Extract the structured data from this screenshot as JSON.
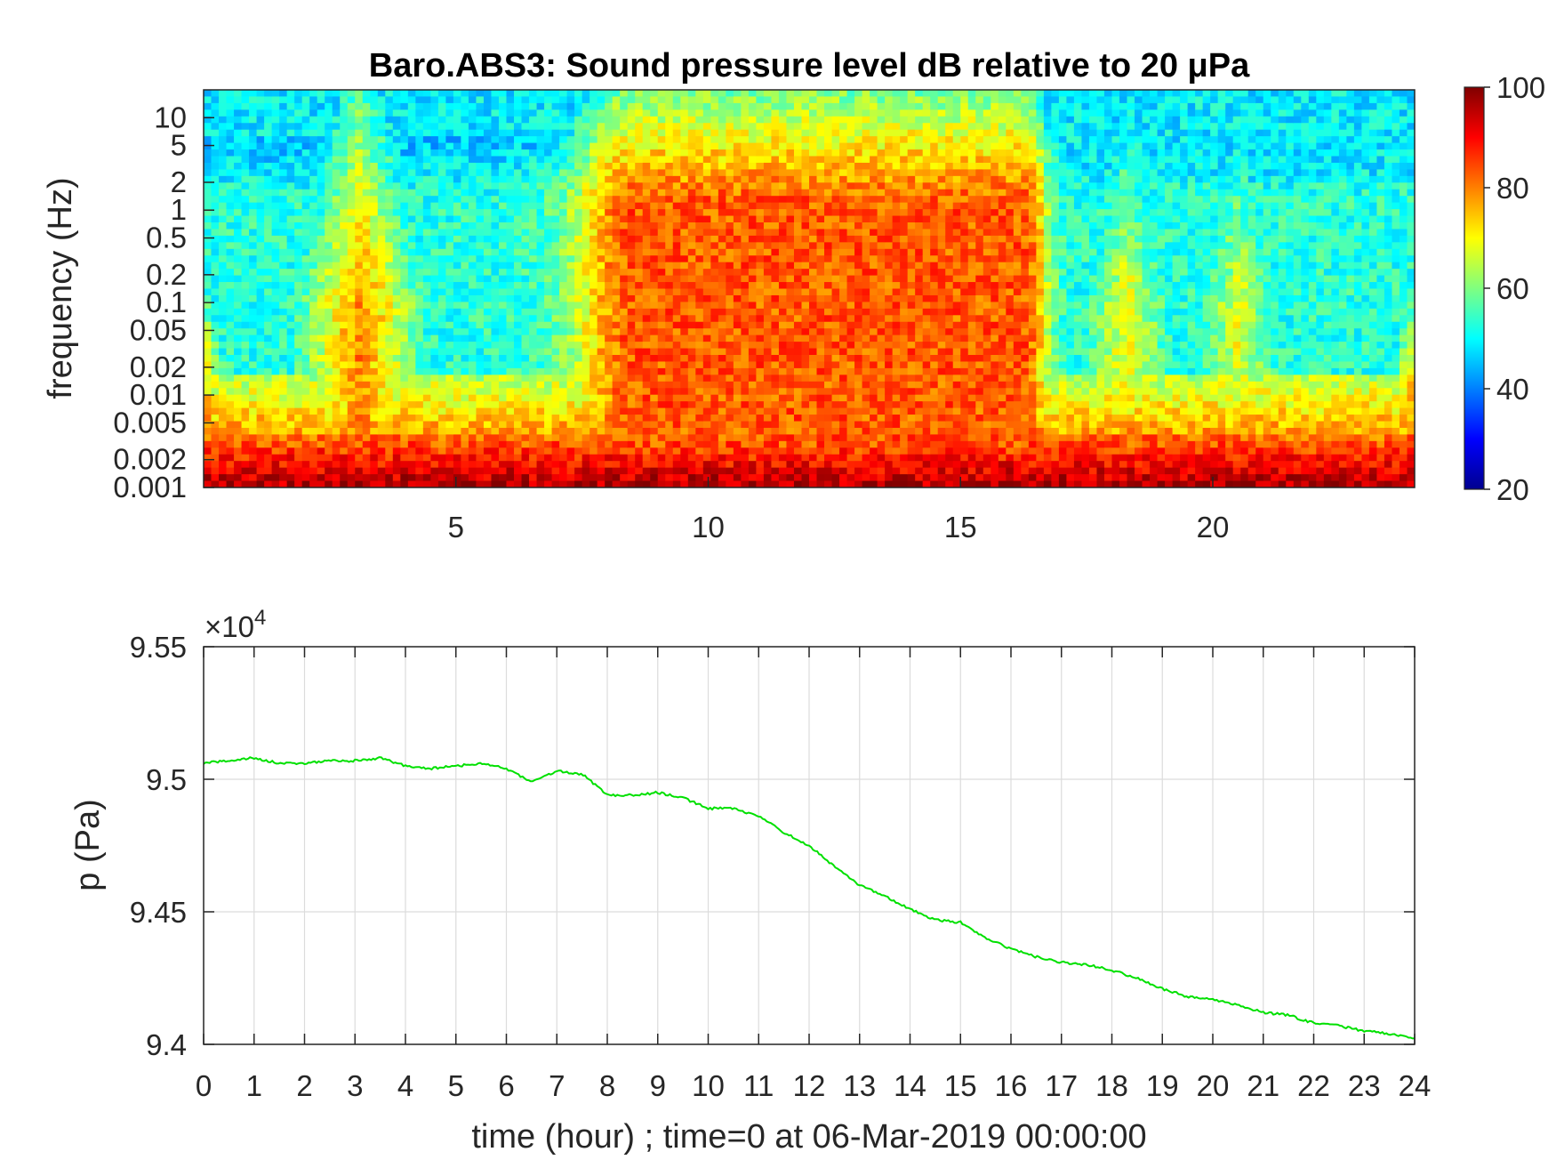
{
  "chart_data": [
    {
      "type": "heatmap",
      "title": "Baro.ABS3: Sound pressure level dB relative to 20 μPa",
      "xlabel": "",
      "ylabel": "frequency (Hz)",
      "xlim": [
        0,
        24
      ],
      "x_ticks": [
        "5",
        "10",
        "15",
        "20"
      ],
      "y_scale": "log",
      "ylim": [
        0.001,
        20
      ],
      "y_ticks": [
        "0.001",
        "0.002",
        "0.005",
        "0.01",
        "0.02",
        "0.05",
        "0.1",
        "0.2",
        "0.5",
        "1",
        "2",
        "5",
        "10"
      ],
      "colorbar": {
        "min": 20,
        "max": 100,
        "ticks": [
          "20",
          "40",
          "60",
          "80",
          "100"
        ],
        "colormap": "jet"
      },
      "events": [
        {
          "name": "broadband high-level period",
          "x_start": 8.5,
          "x_end": 16.3,
          "level_db": 85
        },
        {
          "name": "burst",
          "x": 18.3,
          "level_db": 70
        },
        {
          "name": "burst",
          "x": 20.5,
          "level_db": 68
        },
        {
          "name": "burst",
          "x": 3.1,
          "level_db": 80
        }
      ]
    },
    {
      "type": "line",
      "title": "",
      "xlabel": "time (hour) ; time=0 at 06-Mar-2019 00:00:00",
      "ylabel": "p (Pa)",
      "multiplier": "×10",
      "multiplier_exp": "4",
      "xlim": [
        0,
        24
      ],
      "ylim": [
        9.4,
        9.55
      ],
      "x_ticks": [
        "0",
        "1",
        "2",
        "3",
        "4",
        "5",
        "6",
        "7",
        "8",
        "9",
        "10",
        "11",
        "12",
        "13",
        "14",
        "15",
        "16",
        "17",
        "18",
        "19",
        "20",
        "21",
        "22",
        "23",
        "24"
      ],
      "y_ticks": [
        "9.4",
        "9.45",
        "9.5",
        "9.55"
      ],
      "grid": true,
      "line_color": "#00e000",
      "series": [
        {
          "x": [
            0,
            0.5,
            1,
            1.5,
            2,
            2.5,
            3,
            3.5,
            4,
            4.5,
            5,
            5.5,
            6,
            6.5,
            7,
            7.5,
            8,
            8.5,
            9,
            9.5,
            10,
            10.5,
            11,
            11.5,
            12,
            12.5,
            13,
            13.5,
            14,
            14.5,
            15,
            15.5,
            16,
            16.5,
            17,
            17.5,
            18,
            18.5,
            19,
            19.5,
            20,
            20.5,
            21,
            21.5,
            22,
            22.5,
            23,
            23.5,
            24
          ],
          "y": [
            9.506,
            9.507,
            9.508,
            9.506,
            9.506,
            9.507,
            9.507,
            9.508,
            9.505,
            9.504,
            9.505,
            9.506,
            9.504,
            9.499,
            9.503,
            9.502,
            9.494,
            9.494,
            9.495,
            9.493,
            9.489,
            9.489,
            9.486,
            9.48,
            9.475,
            9.467,
            9.46,
            9.456,
            9.451,
            9.447,
            9.446,
            9.44,
            9.436,
            9.433,
            9.431,
            9.43,
            9.428,
            9.425,
            9.421,
            9.418,
            9.417,
            9.415,
            9.412,
            9.411,
            9.408,
            9.407,
            9.405,
            9.404,
            9.402
          ]
        }
      ]
    }
  ]
}
